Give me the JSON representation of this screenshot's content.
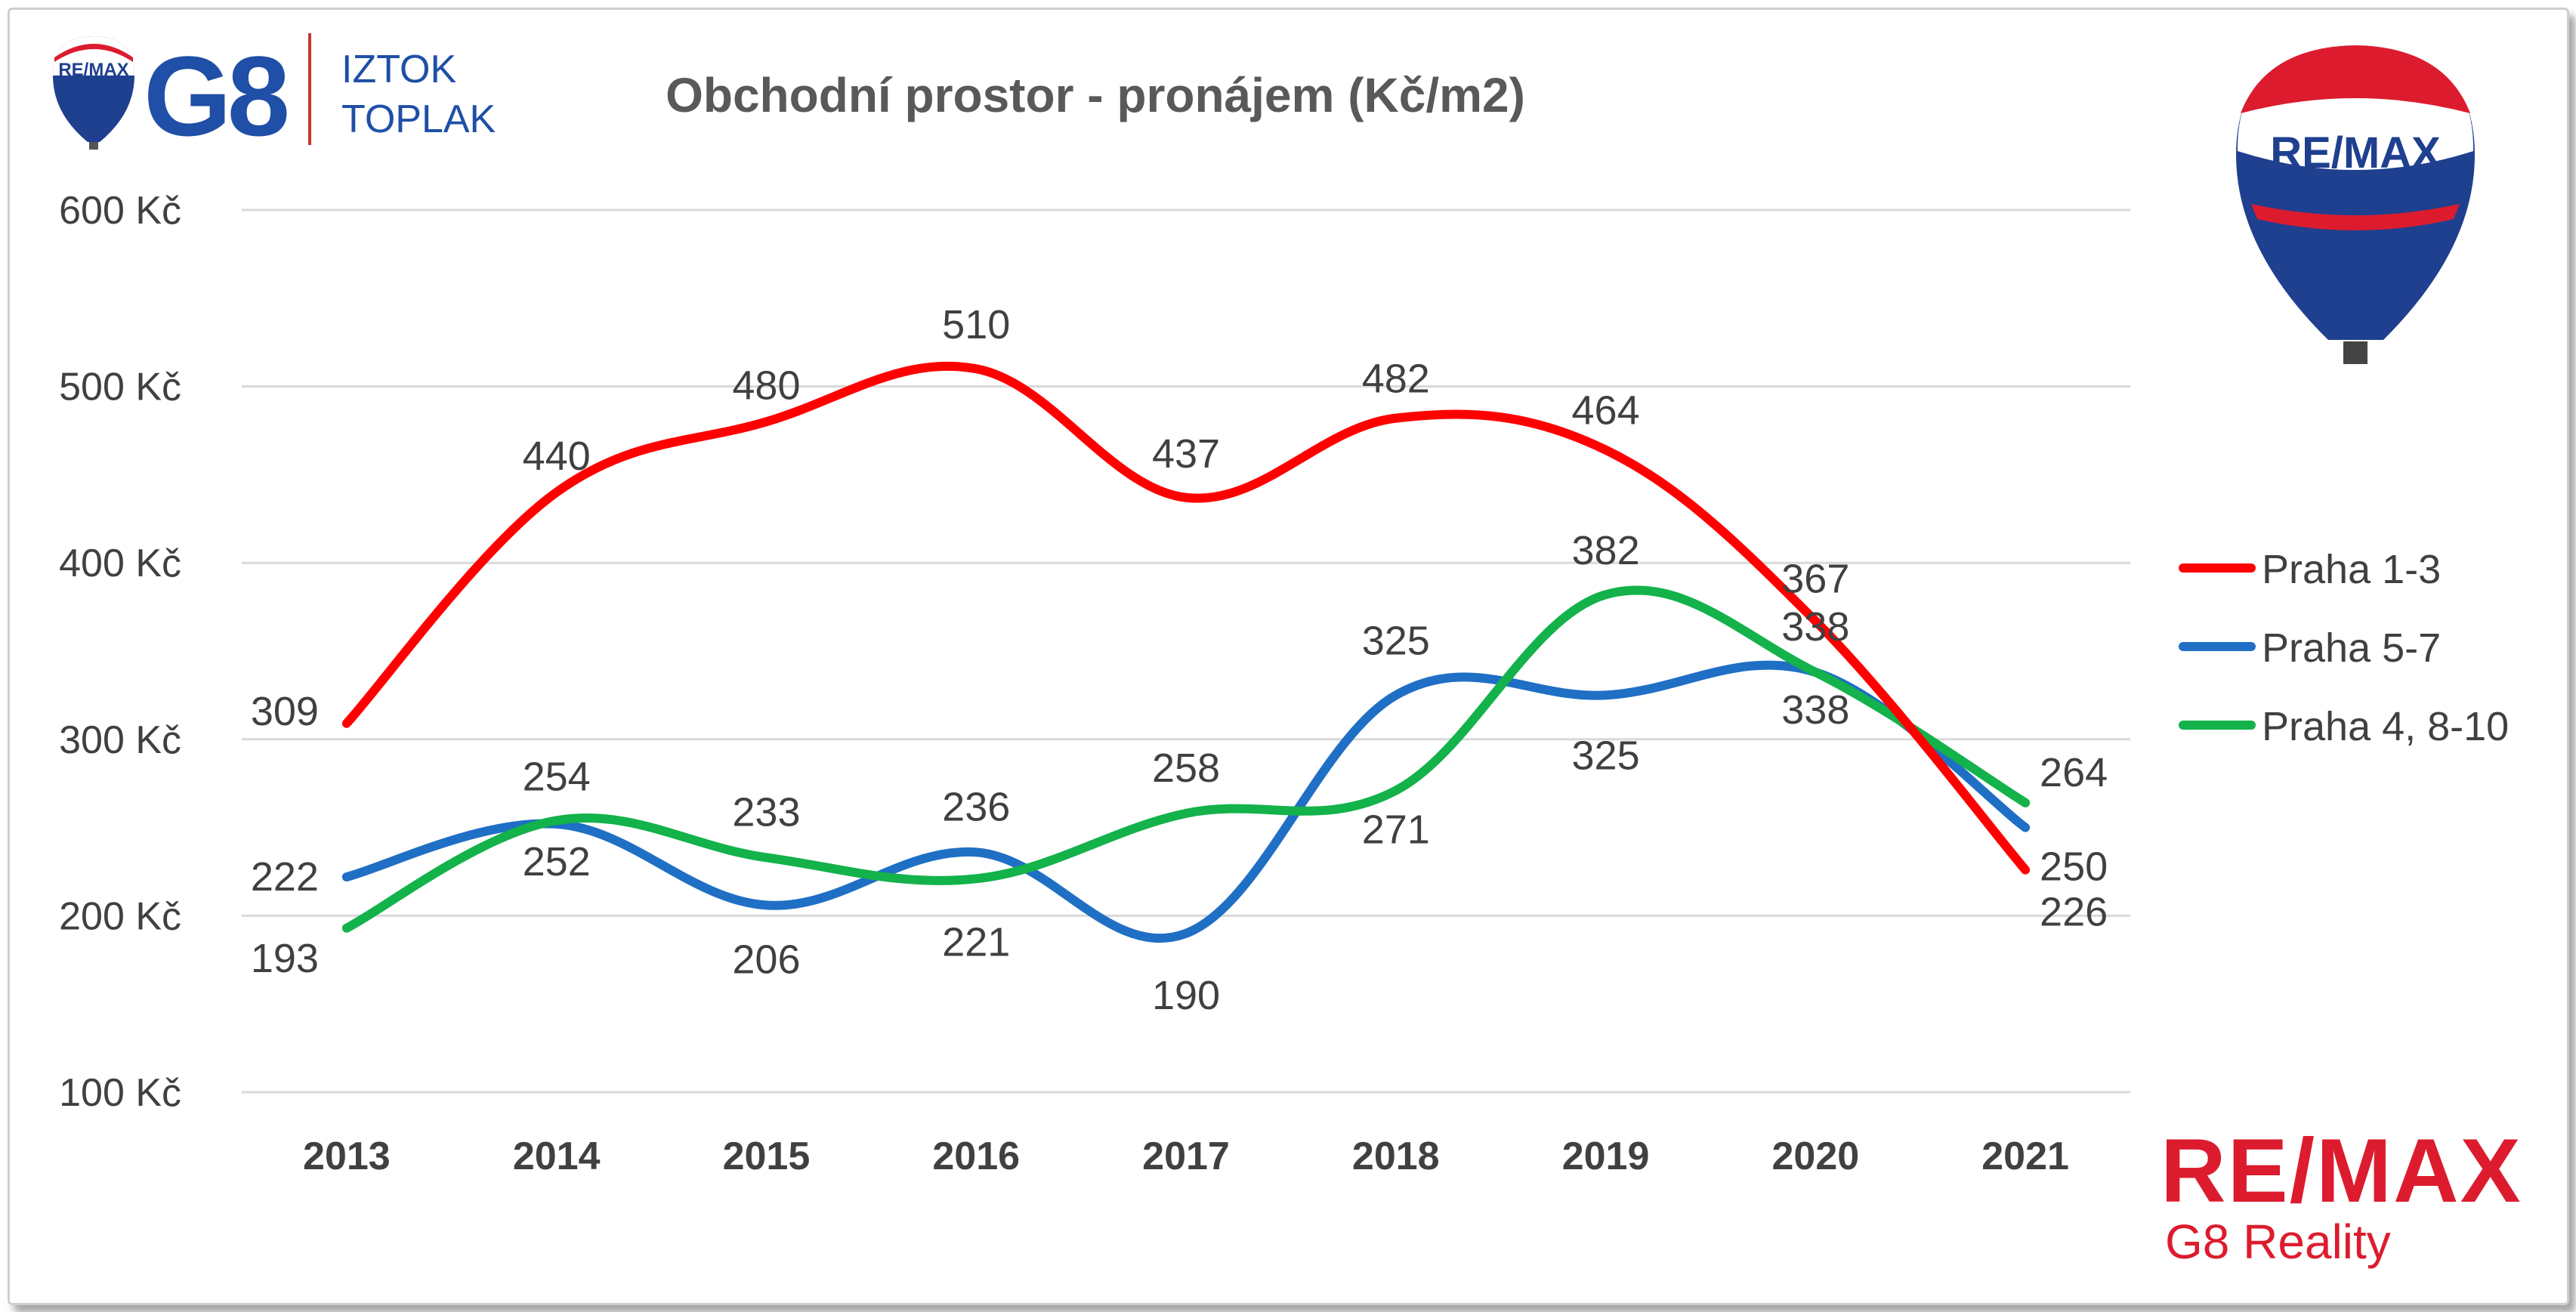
{
  "chart_data": {
    "type": "line",
    "title": "Obchodní prostor - pronájem (Kč/m2)",
    "categories": [
      "2013",
      "2014",
      "2015",
      "2016",
      "2017",
      "2018",
      "2019",
      "2020",
      "2021"
    ],
    "ylim": [
      100,
      600
    ],
    "yticks": [
      "100 Kč",
      "200 Kč",
      "300 Kč",
      "400 Kč",
      "500 Kč",
      "600 Kč"
    ],
    "grid": true,
    "legend": "right",
    "series": [
      {
        "name": "Praha 1-3",
        "color": "#ff0000",
        "values": [
          309,
          440,
          480,
          510,
          437,
          482,
          464,
          367,
          226
        ]
      },
      {
        "name": "Praha 5-7",
        "color": "#1f6fc5",
        "values": [
          222,
          252,
          206,
          236,
          190,
          325,
          325,
          338,
          250
        ]
      },
      {
        "name": "Praha 4, 8-10",
        "color": "#13b24a",
        "values": [
          193,
          254,
          233,
          221,
          258,
          271,
          382,
          338,
          264
        ]
      }
    ]
  },
  "branding": {
    "top_logo_mark": "G8",
    "top_logo_badge": "RE/MAX",
    "agent_first": "IZTOK",
    "agent_last": "TOPLAK",
    "balloon_text": "RE/MAX",
    "bottom_brand": "RE/MAX",
    "bottom_sub": "G8 Reality"
  }
}
